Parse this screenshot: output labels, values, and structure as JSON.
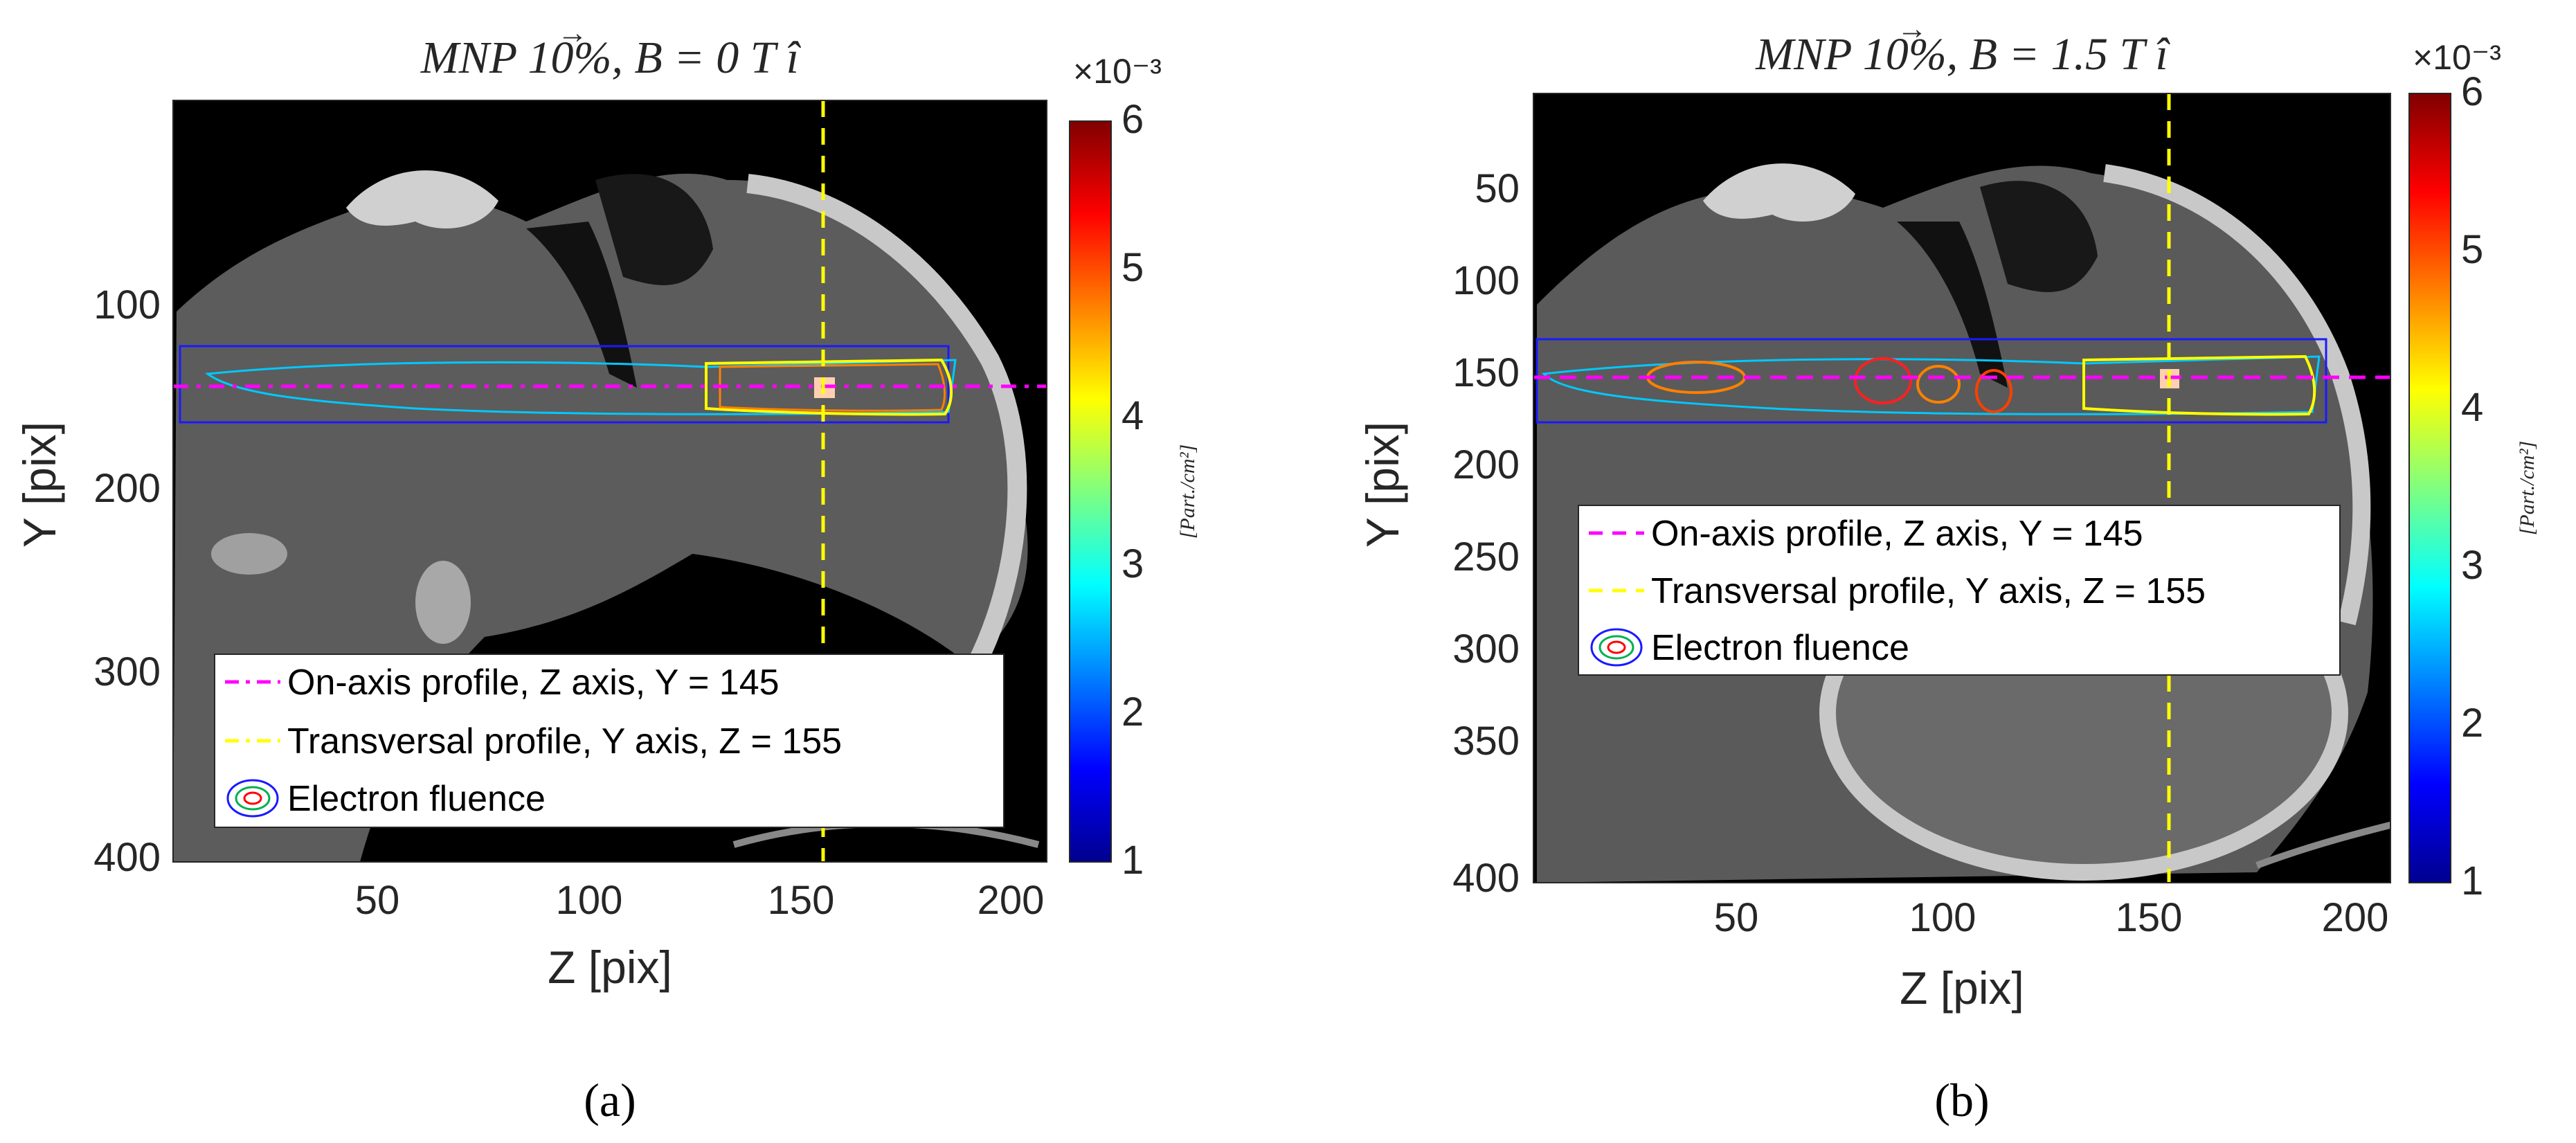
{
  "chart_data": [
    {
      "type": "heatmap",
      "panel_label": "(a)",
      "title": "MNP 10%, B = 0 T î",
      "xlabel": "Z [pix]",
      "ylabel": "Y [pix]",
      "xlim": [
        1,
        209
      ],
      "ylim": [
        1,
        410
      ],
      "xticks": [
        "50",
        "100",
        "150",
        "200"
      ],
      "yticks": [
        "100",
        "200",
        "300",
        "400"
      ],
      "colorbar": {
        "label": "[Part./cm²]",
        "exponent": "×10⁻³",
        "range": [
          1,
          6
        ],
        "ticks": [
          "1",
          "2",
          "3",
          "4",
          "5",
          "6"
        ]
      },
      "lines": [
        {
          "name": "On-axis profile, Z axis, Y = 145",
          "orientation": "horizontal",
          "axis": "Y",
          "value": 145,
          "color": "#ff00ff"
        },
        {
          "name": "Transversal profile, Y axis, Z = 155",
          "orientation": "vertical",
          "axis": "Z",
          "value": 155,
          "color": "#ffff00"
        }
      ],
      "legend": [
        "On-axis profile, Z axis, Y = 145",
        "Transversal profile, Y axis, Z = 155",
        "Electron fluence"
      ],
      "background": "CT slice, grayscale"
    },
    {
      "type": "heatmap",
      "panel_label": "(b)",
      "title": "MNP 10%, B = 1.5 T î",
      "xlabel": "Z [pix]",
      "ylabel": "Y [pix]",
      "xlim": [
        1,
        209
      ],
      "ylim": [
        1,
        410
      ],
      "xticks": [
        "50",
        "100",
        "150",
        "200"
      ],
      "yticks": [
        "50",
        "100",
        "150",
        "200",
        "250",
        "300",
        "350",
        "400"
      ],
      "colorbar": {
        "label": "[Part./cm²]",
        "exponent": "×10⁻³",
        "range": [
          1,
          6
        ],
        "ticks": [
          "1",
          "2",
          "3",
          "4",
          "5",
          "6"
        ]
      },
      "lines": [
        {
          "name": "On-axis profile, Z axis, Y = 145",
          "orientation": "horizontal",
          "axis": "Y",
          "value": 145,
          "color": "#ff00ff"
        },
        {
          "name": "Transversal profile, Y axis, Z = 155",
          "orientation": "vertical",
          "axis": "Z",
          "value": 155,
          "color": "#ffff00"
        }
      ],
      "legend": [
        "On-axis profile, Z axis, Y = 145",
        "Transversal profile, Y axis, Z = 155",
        "Electron fluence"
      ],
      "background": "CT slice, grayscale"
    }
  ],
  "colors": {
    "magenta": "#ff00ff",
    "yellow": "#ffff00",
    "ct_dark": "#000000",
    "ct_tissue": "#5a5a5a",
    "ct_bone": "#bdbdbd"
  }
}
